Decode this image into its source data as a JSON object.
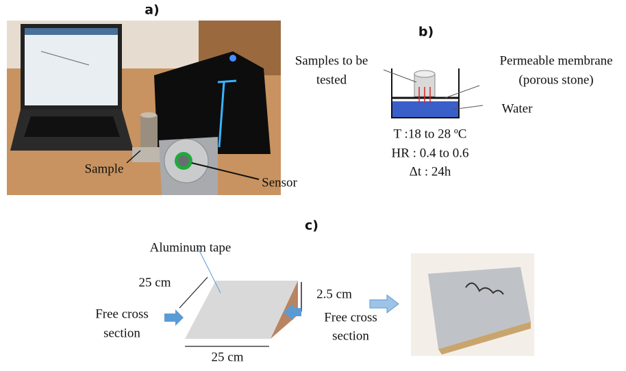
{
  "panel_a": {
    "label": "a)",
    "sample_label": "Sample",
    "sensor_label": "Sensor"
  },
  "panel_b": {
    "label": "b)",
    "samples_label": [
      "Samples to be",
      "tested"
    ],
    "membrane_label": [
      "Permeable membrane",
      "(porous stone)"
    ],
    "water_label": "Water",
    "conditions": [
      "T :18 to 28 ºC",
      "HR : 0.4 to 0.6",
      "Δt : 24h"
    ]
  },
  "panel_c": {
    "label": "c)",
    "tape_label": "Aluminum tape",
    "depth_label": "25 cm",
    "thickness_label": "2.5 cm",
    "width_label": "25 cm",
    "left_section_label": [
      "Free cross",
      "section"
    ],
    "right_section_label": [
      "Free cross",
      "section"
    ]
  }
}
